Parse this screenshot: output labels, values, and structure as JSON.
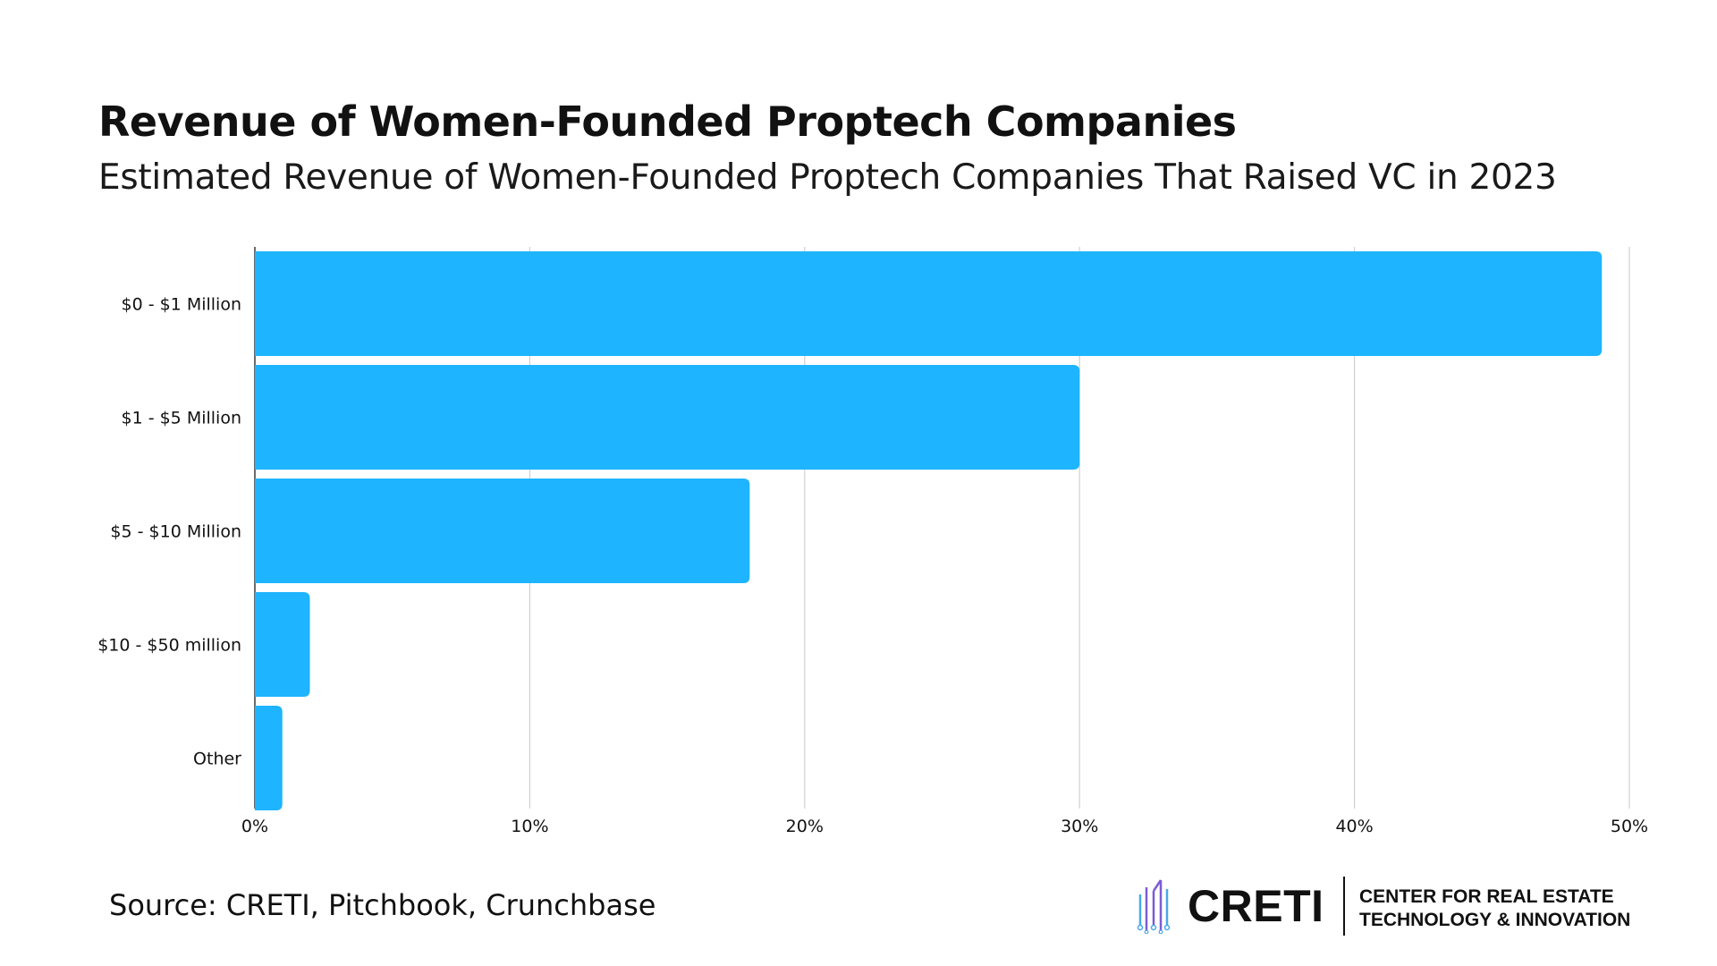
{
  "title": "Revenue of Women-Founded Proptech Companies",
  "subtitle": "Estimated Revenue of Women-Founded Proptech Companies That Raised VC in 2023",
  "source": "Source: CRETI, Pitchbook, Crunchbase",
  "brand": {
    "name": "CRETI",
    "tagline_line1": "CENTER FOR REAL ESTATE",
    "tagline_line2": "TECHNOLOGY & INNOVATION",
    "logo_icon": "building-circuit-icon"
  },
  "colors": {
    "bar": "#1eb4ff",
    "gridline": "#d0d0d0",
    "text": "#111111",
    "logo_purple": "#7b5cd6",
    "logo_blue": "#4aa8e8"
  },
  "chart_data": {
    "type": "bar",
    "orientation": "horizontal",
    "categories": [
      "$0 - $1 Million",
      "$1 - $5 Million",
      "$5 - $10 Million",
      "$10 - $50 million",
      "Other"
    ],
    "values": [
      49,
      30,
      18,
      2,
      1
    ],
    "x_ticks": [
      "0%",
      "10%",
      "20%",
      "30%",
      "40%",
      "50%"
    ],
    "xlim": [
      0,
      50
    ],
    "unit": "%",
    "grid": true,
    "legend": "none"
  }
}
